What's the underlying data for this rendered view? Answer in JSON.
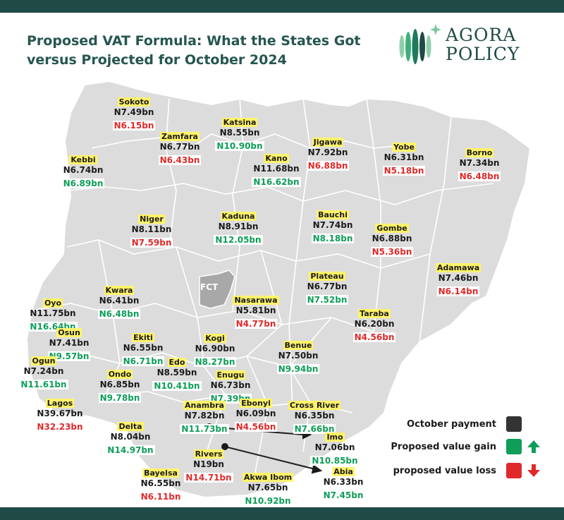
{
  "title": "Proposed VAT Formula: What the States Got versus Projected for October 2024",
  "logo": {
    "text": "AGORA POLICY"
  },
  "fct_label": "FCT",
  "colors": {
    "header_bar": "#1f4a46",
    "gain": "#0e9e58",
    "loss": "#e02a2a",
    "october": "#333333",
    "map_fill": "#dcdcdc",
    "fct_fill": "#a8a8a8",
    "name_highlight": "#fff36a"
  },
  "legend": [
    {
      "label": "October payment",
      "color": "#333333",
      "icon": ""
    },
    {
      "label": "Proposed value gain",
      "color": "#0e9e58",
      "icon": "arrow-up-icon"
    },
    {
      "label": "proposed value loss",
      "color": "#e02a2a",
      "icon": "arrow-down-icon"
    }
  ],
  "states": [
    {
      "name": "Sokoto",
      "october": "N7.49bn",
      "proposed": "N6.15bn",
      "trend": "loss"
    },
    {
      "name": "Zamfara",
      "october": "N6.77bn",
      "proposed": "N6.43bn",
      "trend": "loss"
    },
    {
      "name": "Katsina",
      "october": "N8.55bn",
      "proposed": "N10.90bn",
      "trend": "gain"
    },
    {
      "name": "Jigawa",
      "october": "N7.92bn",
      "proposed": "N6.88bn",
      "trend": "loss"
    },
    {
      "name": "Yobe",
      "october": "N6.31bn",
      "proposed": "N5.18bn",
      "trend": "loss"
    },
    {
      "name": "Borno",
      "october": "N7.34bn",
      "proposed": "N6.48bn",
      "trend": "loss"
    },
    {
      "name": "Kebbi",
      "october": "N6.74bn",
      "proposed": "N6.89bn",
      "trend": "gain"
    },
    {
      "name": "Kano",
      "october": "N11.68bn",
      "proposed": "N16.62bn",
      "trend": "gain"
    },
    {
      "name": "Niger",
      "october": "N8.11bn",
      "proposed": "N7.59bn",
      "trend": "loss"
    },
    {
      "name": "Kaduna",
      "october": "N8.91bn",
      "proposed": "N12.05bn",
      "trend": "gain"
    },
    {
      "name": "Bauchi",
      "october": "N7.74bn",
      "proposed": "N8.18bn",
      "trend": "gain"
    },
    {
      "name": "Gombe",
      "october": "N6.88bn",
      "proposed": "N5.36bn",
      "trend": "loss"
    },
    {
      "name": "Adamawa",
      "october": "N7.46bn",
      "proposed": "N6.14bn",
      "trend": "loss"
    },
    {
      "name": "Plateau",
      "october": "N6.77bn",
      "proposed": "N7.52bn",
      "trend": "gain"
    },
    {
      "name": "Nasarawa",
      "october": "N5.81bn",
      "proposed": "N4.77bn",
      "trend": "loss"
    },
    {
      "name": "Kwara",
      "october": "N6.41bn",
      "proposed": "N6.48bn",
      "trend": "gain"
    },
    {
      "name": "Oyo",
      "october": "N11.75bn",
      "proposed": "N16.64bn",
      "trend": "gain"
    },
    {
      "name": "Taraba",
      "october": "N6.20bn",
      "proposed": "N4.56bn",
      "trend": "loss"
    },
    {
      "name": "Osun",
      "october": "N7.41bn",
      "proposed": "N9.57bn",
      "trend": "gain"
    },
    {
      "name": "Ekiti",
      "october": "N6.55bn",
      "proposed": "N6.71bn",
      "trend": "gain"
    },
    {
      "name": "Kogi",
      "october": "N6.90bn",
      "proposed": "N8.27bn",
      "trend": "gain"
    },
    {
      "name": "Benue",
      "october": "N7.50bn",
      "proposed": "N9.94bn",
      "trend": "gain"
    },
    {
      "name": "Ogun",
      "october": "N7.24bn",
      "proposed": "N11.61bn",
      "trend": "gain"
    },
    {
      "name": "Edo",
      "october": "N8.59bn",
      "proposed": "N10.41bn",
      "trend": "gain"
    },
    {
      "name": "Ondo",
      "october": "N6.85bn",
      "proposed": "N9.78bn",
      "trend": "gain"
    },
    {
      "name": "Enugu",
      "october": "N6.73bn",
      "proposed": "N7.39bn",
      "trend": "gain"
    },
    {
      "name": "Lagos",
      "october": "N39.67bn",
      "proposed": "N32.23bn",
      "trend": "loss"
    },
    {
      "name": "Anambra",
      "october": "N7.82bn",
      "proposed": "N11.73bn",
      "trend": "gain"
    },
    {
      "name": "Ebonyi",
      "october": "N6.09bn",
      "proposed": "N4.56bn",
      "trend": "loss"
    },
    {
      "name": "Cross River",
      "october": "N6.35bn",
      "proposed": "N7.66bn",
      "trend": "gain"
    },
    {
      "name": "Delta",
      "october": "N8.04bn",
      "proposed": "N14.97bn",
      "trend": "gain"
    },
    {
      "name": "Imo",
      "october": "N7.06bn",
      "proposed": "N10.85bn",
      "trend": "gain"
    },
    {
      "name": "Rivers",
      "october": "N19bn",
      "proposed": "N14.71bn",
      "trend": "loss"
    },
    {
      "name": "Akwa Ibom",
      "october": "N7.65bn",
      "proposed": "N10.92bn",
      "trend": "gain"
    },
    {
      "name": "Abia",
      "october": "N6.33bn",
      "proposed": "N7.45bn",
      "trend": "gain"
    },
    {
      "name": "Bayelsa",
      "october": "N6.55bn",
      "proposed": "N6.11bn",
      "trend": "loss"
    }
  ]
}
